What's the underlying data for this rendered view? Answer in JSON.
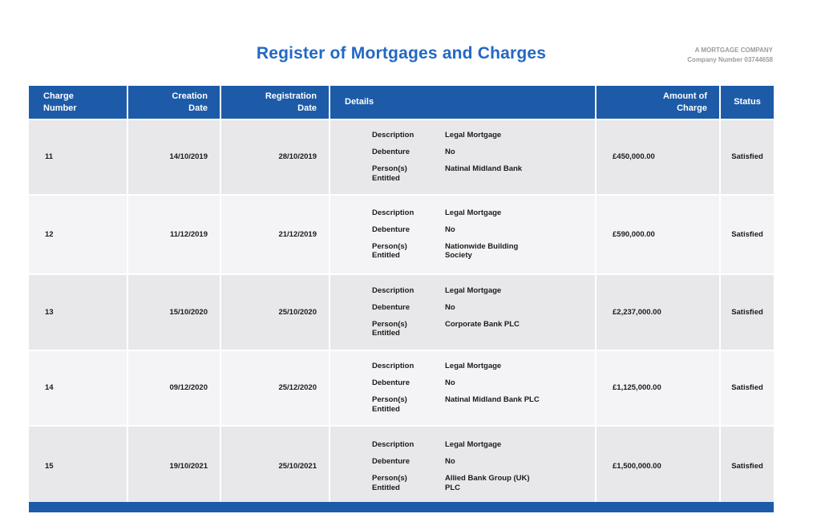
{
  "page": {
    "title": "Register of Mortgages and Charges",
    "company_name": "A MORTGAGE COMPANY",
    "company_number": "Company Number 03744658"
  },
  "colors": {
    "title_blue": "#2368c4",
    "header_bar_navy": "#1d5ba8",
    "row_light": "#f4f4f6",
    "row_dark": "#e8e8ea"
  },
  "table": {
    "headers": {
      "charge_number": "Charge\nNumber",
      "creation_date": "Creation\nDate",
      "registration_date": "Registration\nDate",
      "details": "Details",
      "amount_of_charge": "Amount of\nCharge",
      "status": "Status"
    },
    "detail_labels": {
      "description": "Description",
      "debenture": "Debenture",
      "persons_entitled": "Person(s)\nEntitled"
    },
    "rows": [
      {
        "charge_number": "11",
        "creation_date": "14/10/2019",
        "registration_date": "28/10/2019",
        "description": "Legal Mortgage",
        "debenture": "No",
        "persons_entitled": "Natinal Midland Bank",
        "amount": "£450,000.00",
        "status": "Satisfied"
      },
      {
        "charge_number": "12",
        "creation_date": "11/12/2019",
        "registration_date": "21/12/2019",
        "description": "Legal Mortgage",
        "debenture": "No",
        "persons_entitled": "Nationwide Building\nSociety",
        "amount": "£590,000.00",
        "status": "Satisfied"
      },
      {
        "charge_number": "13",
        "creation_date": "15/10/2020",
        "registration_date": "25/10/2020",
        "description": "Legal Mortgage",
        "debenture": "No",
        "persons_entitled": "Corporate Bank PLC",
        "amount": "£2,237,000.00",
        "status": "Satisfied"
      },
      {
        "charge_number": "14",
        "creation_date": "09/12/2020",
        "registration_date": "25/12/2020",
        "description": "Legal Mortgage",
        "debenture": "No",
        "persons_entitled": "Natinal Midland Bank PLC",
        "amount": "£1,125,000.00",
        "status": "Satisfied"
      },
      {
        "charge_number": "15",
        "creation_date": "19/10/2021",
        "registration_date": "25/10/2021",
        "description": "Legal Mortgage",
        "debenture": "No",
        "persons_entitled": "Allied Bank Group (UK)\nPLC",
        "amount": "£1,500,000.00",
        "status": "Satisfied"
      }
    ]
  }
}
